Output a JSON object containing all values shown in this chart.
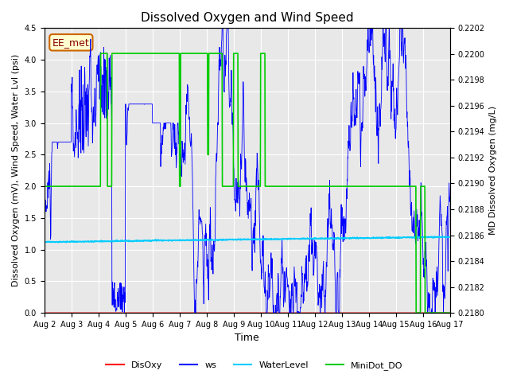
{
  "title": "Dissolved Oxygen and Wind Speed",
  "ylabel_left": "Dissolved Oxygen (mV), Wind Speed, Water Lvl (psi)",
  "ylabel_right": "MD Dissolved Oxygen (mg/L)",
  "xlabel": "Time",
  "ylim_left": [
    0.0,
    4.5
  ],
  "ylim_right": [
    0.218,
    0.2202
  ],
  "annotation": "EE_met",
  "annotation_color": "#8b0000",
  "annotation_bg": "#ffffd0",
  "annotation_edge": "#cc6600",
  "background_color": "#e8e8e8",
  "legend_items": [
    "DisOxy",
    "ws",
    "WaterLevel",
    "MiniDot_DO"
  ],
  "legend_colors": [
    "#ff0000",
    "#0000ff",
    "#00ccff",
    "#00cc00"
  ],
  "grid_color": "#ffffff",
  "title_fontsize": 11,
  "axis_fontsize": 8,
  "tick_fontsize": 7
}
